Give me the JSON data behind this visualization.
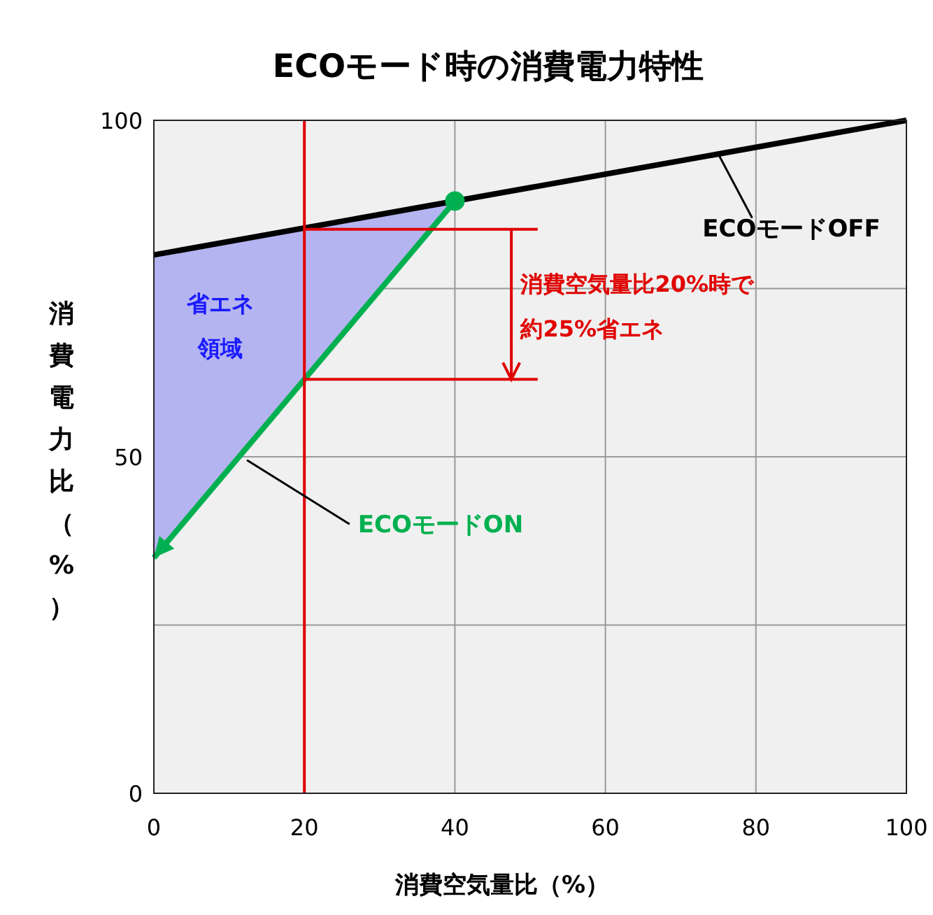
{
  "chart_data": {
    "type": "line",
    "title": "ECOモード時の消費電力特性",
    "xlabel": "消費空気量比（%）",
    "ylabel": "消費電力比（%）",
    "xlim": [
      0,
      100
    ],
    "xticks": [
      0,
      20,
      40,
      60,
      80,
      100
    ],
    "ylim": [
      0,
      100
    ],
    "yticks": [
      0,
      {
        "value": 25,
        "label": null
      },
      50,
      {
        "value": 75,
        "label": null
      },
      100
    ],
    "grid": true,
    "series": [
      {
        "name": "ECOモードOFF",
        "color": "#000000",
        "x": [
          0,
          100
        ],
        "values": [
          80,
          100
        ]
      },
      {
        "name": "ECOモードON",
        "color": "#00b050",
        "x": [
          40,
          0
        ],
        "values": [
          88,
          35
        ]
      },
      {
        "type": "scatter",
        "color": "#00b050",
        "x": [
          40
        ],
        "values": [
          88
        ],
        "marker": "circle"
      }
    ],
    "ref_lines": [
      {
        "axis": "x",
        "value": 20,
        "color": "#e00000"
      }
    ],
    "annotations": [
      "省エネ領域",
      "消費空気量比20%時で約25%省エネ"
    ]
  }
}
